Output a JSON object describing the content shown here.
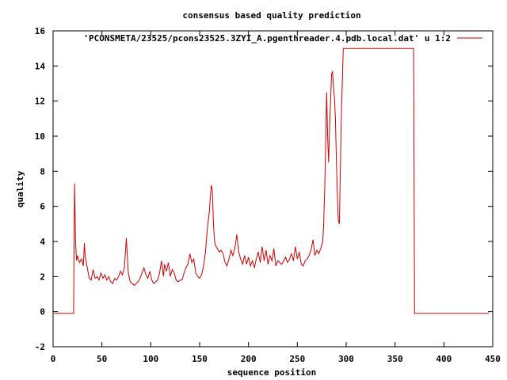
{
  "chart_data": {
    "type": "line",
    "title": "consensus based quality prediction",
    "xlabel": "sequence position",
    "ylabel": "quality",
    "xlim": [
      0,
      450
    ],
    "ylim": [
      -2,
      16
    ],
    "xticks": [
      0,
      50,
      100,
      150,
      200,
      250,
      300,
      350,
      400,
      450
    ],
    "yticks": [
      -2,
      0,
      2,
      4,
      6,
      8,
      10,
      12,
      14,
      16
    ],
    "legend_position": "top-right",
    "colors": {
      "series": "#cc0000",
      "frame": "#000000",
      "background": "#ffffff"
    },
    "series": [
      {
        "name": "'PCONSMETA/23525/pcons23525.3ZYI_A.pgenthreader.4.pdb.local.dat' u 1:2",
        "x": [
          1,
          21,
          22,
          23,
          24,
          25,
          27,
          29,
          31,
          32,
          33,
          35,
          37,
          39,
          41,
          43,
          45,
          47,
          49,
          51,
          53,
          55,
          57,
          59,
          61,
          63,
          65,
          67,
          69,
          71,
          73,
          75,
          76,
          77,
          79,
          81,
          83,
          85,
          87,
          89,
          91,
          93,
          95,
          97,
          99,
          101,
          103,
          105,
          107,
          109,
          111,
          113,
          114,
          116,
          118,
          120,
          122,
          124,
          126,
          128,
          130,
          132,
          134,
          136,
          138,
          140,
          142,
          144,
          146,
          148,
          150,
          152,
          154,
          156,
          158,
          160,
          161,
          162,
          163,
          164,
          165,
          166,
          168,
          170,
          172,
          174,
          176,
          178,
          180,
          182,
          184,
          186,
          188,
          190,
          192,
          194,
          196,
          198,
          200,
          202,
          204,
          206,
          208,
          210,
          212,
          214,
          216,
          218,
          220,
          222,
          224,
          226,
          228,
          230,
          232,
          234,
          236,
          238,
          240,
          242,
          244,
          246,
          248,
          250,
          252,
          254,
          256,
          258,
          260,
          262,
          264,
          266,
          268,
          270,
          272,
          274,
          276,
          277,
          278,
          279,
          280,
          281,
          282,
          283,
          284,
          285,
          286,
          287,
          288,
          289,
          290,
          291,
          292,
          293,
          294,
          295,
          296,
          297,
          369,
          370,
          446
        ],
        "y": [
          -0.1,
          -0.1,
          7.3,
          4.0,
          2.9,
          3.2,
          2.8,
          3.0,
          2.6,
          3.9,
          3.1,
          2.5,
          1.9,
          1.8,
          2.4,
          1.9,
          2.0,
          1.8,
          2.2,
          1.9,
          2.1,
          1.8,
          2.0,
          1.7,
          1.6,
          1.9,
          1.8,
          2.0,
          2.3,
          2.1,
          2.5,
          4.2,
          3.2,
          2.2,
          1.7,
          1.6,
          1.5,
          1.6,
          1.7,
          1.9,
          2.2,
          2.5,
          2.1,
          1.9,
          2.3,
          1.8,
          1.6,
          1.7,
          1.8,
          2.2,
          2.9,
          2.0,
          2.7,
          2.3,
          2.8,
          2.0,
          2.4,
          2.2,
          1.8,
          1.7,
          1.8,
          1.8,
          2.2,
          2.5,
          2.7,
          3.3,
          2.8,
          3.0,
          2.2,
          2.0,
          1.9,
          2.1,
          2.6,
          3.4,
          4.8,
          5.7,
          6.6,
          7.2,
          6.9,
          5.2,
          4.2,
          3.8,
          3.6,
          3.4,
          3.5,
          3.3,
          2.8,
          2.6,
          3.0,
          3.5,
          3.2,
          3.6,
          4.4,
          3.4,
          3.0,
          2.7,
          3.2,
          2.7,
          3.1,
          2.6,
          2.9,
          2.5,
          3.0,
          3.4,
          2.8,
          3.7,
          2.9,
          3.5,
          2.7,
          3.2,
          2.9,
          3.6,
          2.6,
          2.9,
          2.8,
          2.7,
          2.9,
          3.1,
          2.8,
          3.0,
          3.3,
          2.9,
          3.7,
          3.0,
          3.4,
          2.7,
          2.6,
          2.9,
          3.0,
          3.2,
          3.5,
          4.1,
          3.2,
          3.5,
          3.3,
          3.6,
          4.0,
          5.0,
          7.0,
          9.5,
          12.5,
          10.0,
          8.5,
          10.5,
          12.0,
          13.5,
          13.7,
          12.8,
          12.2,
          11.0,
          8.5,
          6.5,
          5.2,
          5.0,
          8.0,
          11.0,
          13.0,
          15.0,
          15.0,
          -0.1,
          -0.1
        ]
      }
    ]
  }
}
